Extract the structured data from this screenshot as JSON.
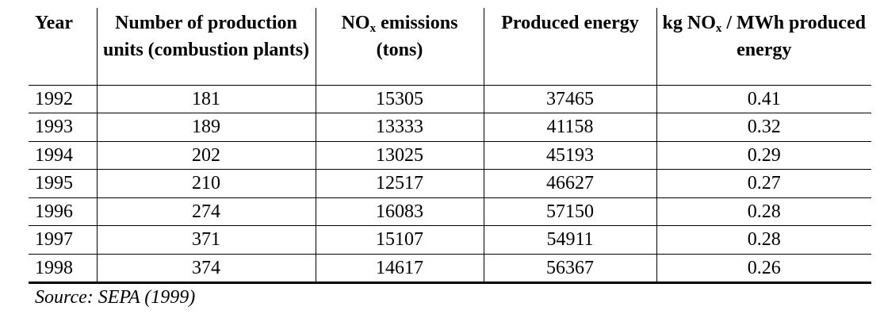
{
  "table": {
    "headers": {
      "year": "Year",
      "units": "Number of production units (combustion plants)",
      "nox_prefix": "NO",
      "nox_sub": "x",
      "nox_suffix": " emissions (tons)",
      "energy": "Produced energy",
      "ratio_prefix": "kg NO",
      "ratio_sub": "x",
      "ratio_suffix": " / MWh produced energy"
    },
    "rows": [
      {
        "year": "1992",
        "units": "181",
        "nox": "15305",
        "energy": "37465",
        "ratio": "0.41"
      },
      {
        "year": "1993",
        "units": "189",
        "nox": "13333",
        "energy": "41158",
        "ratio": "0.32"
      },
      {
        "year": "1994",
        "units": "202",
        "nox": "13025",
        "energy": "45193",
        "ratio": "0.29"
      },
      {
        "year": "1995",
        "units": "210",
        "nox": "12517",
        "energy": "46627",
        "ratio": "0.27"
      },
      {
        "year": "1996",
        "units": "274",
        "nox": "16083",
        "energy": "57150",
        "ratio": "0.28"
      },
      {
        "year": "1997",
        "units": "371",
        "nox": "15107",
        "energy": "54911",
        "ratio": "0.28"
      },
      {
        "year": "1998",
        "units": "374",
        "nox": "14617",
        "energy": "56367",
        "ratio": "0.26"
      }
    ]
  },
  "source": "Source: SEPA (1999)"
}
